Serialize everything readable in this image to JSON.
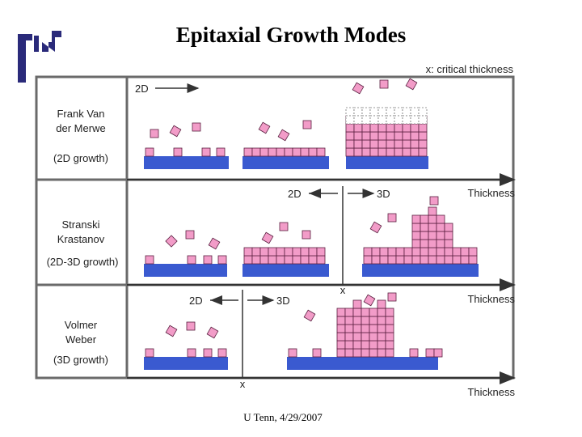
{
  "title": "Epitaxial Growth Modes",
  "footer": "U Tenn, 4/29/2007",
  "legend_critical": "x: critical thickness",
  "axis_label": "Thickness",
  "critical_marker": "x",
  "modes": [
    {
      "name_line1": "Frank Van",
      "name_line2": "der Merwe",
      "growth": "(2D growth)",
      "arrow_2d": "2D"
    },
    {
      "name_line1": "Stranski",
      "name_line2": "Krastanov",
      "growth": "(2D-3D growth)",
      "label_2d": "2D",
      "label_3d": "3D"
    },
    {
      "name_line1": "Volmer",
      "name_line2": "Weber",
      "growth": "(3D growth)",
      "label_2d": "2D",
      "label_3d": "3D"
    }
  ],
  "colors": {
    "substrate": "#3a5ad0",
    "adatom": "#f29cc8",
    "adatom_stroke": "#5a2040",
    "frame": "#6a6a6a"
  }
}
